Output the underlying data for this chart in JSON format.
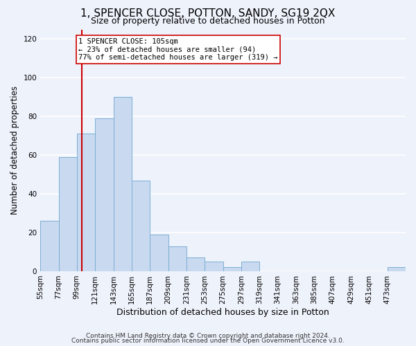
{
  "title": "1, SPENCER CLOSE, POTTON, SANDY, SG19 2QX",
  "subtitle": "Size of property relative to detached houses in Potton",
  "xlabel": "Distribution of detached houses by size in Potton",
  "ylabel": "Number of detached properties",
  "bar_edges": [
    55,
    77,
    99,
    121,
    143,
    165,
    187,
    209,
    231,
    253,
    275,
    297,
    319,
    341,
    363,
    385,
    407,
    429,
    451,
    473,
    495
  ],
  "bar_heights": [
    26,
    59,
    71,
    79,
    90,
    47,
    19,
    13,
    7,
    5,
    2,
    5,
    0,
    0,
    0,
    0,
    0,
    0,
    0,
    2
  ],
  "bar_color": "#c9d9f0",
  "bar_edge_color": "#7bafd4",
  "property_line_x": 105,
  "property_line_color": "#cc0000",
  "ylim": [
    0,
    125
  ],
  "yticks": [
    0,
    20,
    40,
    60,
    80,
    100,
    120
  ],
  "annotation_line1": "1 SPENCER CLOSE: 105sqm",
  "annotation_line2": "← 23% of detached houses are smaller (94)",
  "annotation_line3": "77% of semi-detached houses are larger (319) →",
  "annotation_box_color": "#ffffff",
  "annotation_border_color": "#cc0000",
  "footer_line1": "Contains HM Land Registry data © Crown copyright and database right 2024.",
  "footer_line2": "Contains public sector information licensed under the Open Government Licence v3.0.",
  "background_color": "#eef2fb",
  "plot_background_color": "#eef2fb",
  "grid_color": "#ffffff",
  "tick_label_fontsize": 7.5,
  "title_fontsize": 11,
  "subtitle_fontsize": 9,
  "xlabel_fontsize": 9,
  "ylabel_fontsize": 8.5
}
